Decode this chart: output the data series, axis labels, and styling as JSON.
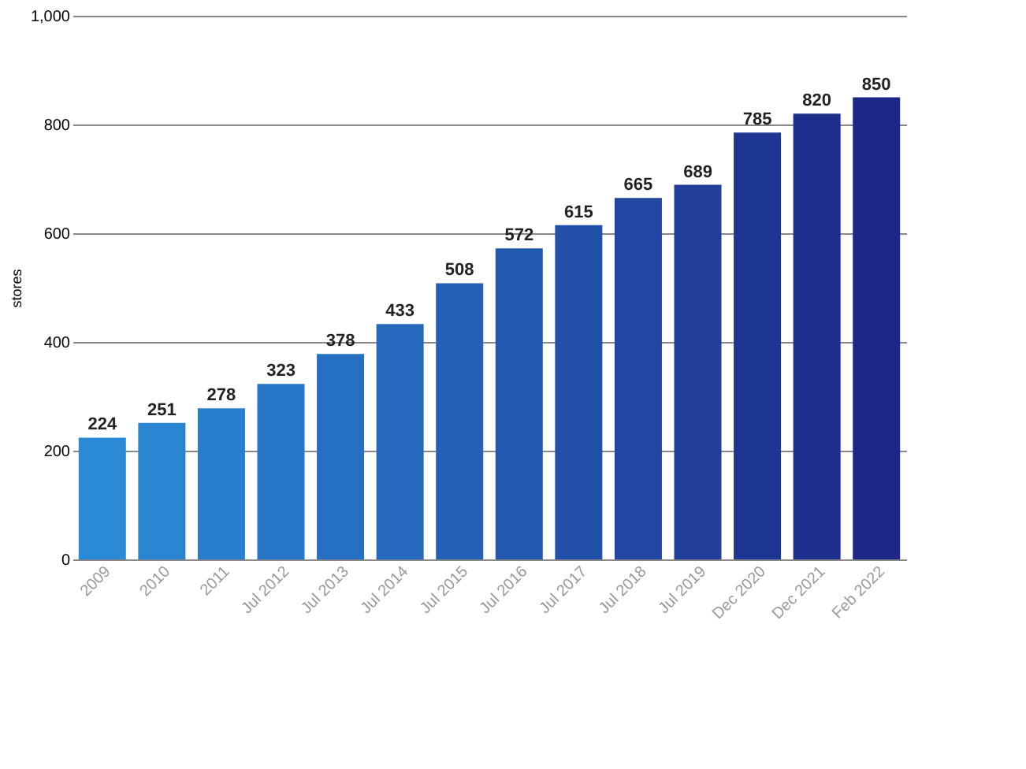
{
  "chart_data": {
    "type": "bar",
    "ylabel": "stores",
    "categories": [
      "2009",
      "2010",
      "2011",
      "Jul 2012",
      "Jul 2013",
      "Jul 2014",
      "Jul 2015",
      "Jul 2016",
      "Jul 2017",
      "Jul 2018",
      "Jul 2019",
      "Dec 2020",
      "Dec 2021",
      "Feb 2022"
    ],
    "values": [
      224,
      251,
      278,
      323,
      378,
      433,
      508,
      572,
      615,
      665,
      689,
      785,
      820,
      850
    ],
    "colors": [
      "#2a8ad6",
      "#2984d2",
      "#287ecd",
      "#2777c8",
      "#2670c3",
      "#2568bd",
      "#2460b6",
      "#2358b0",
      "#2250a9",
      "#2147a2",
      "#203f9b",
      "#1e3693",
      "#1d2e8c",
      "#1c2786"
    ],
    "ylim": [
      0,
      1000
    ],
    "yticks": [
      0,
      200,
      400,
      600,
      800,
      {
        "value": 1000,
        "label": "1,000"
      }
    ],
    "grid": "y",
    "data_labels": true
  }
}
